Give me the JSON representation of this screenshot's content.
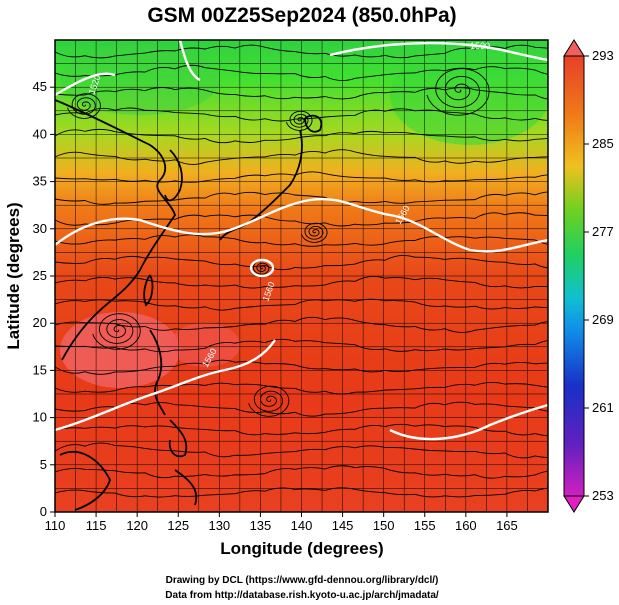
{
  "title": "GSM 00Z25Sep2024 (850.0hPa)",
  "x_axis": {
    "label": "Longitude (degrees)",
    "range": [
      110,
      170
    ],
    "ticks": [
      110,
      115,
      120,
      125,
      130,
      135,
      140,
      145,
      150,
      155,
      160,
      165
    ]
  },
  "y_axis": {
    "label": "Latitude (degrees)",
    "range": [
      0,
      50
    ],
    "ticks": [
      0,
      5,
      10,
      15,
      20,
      25,
      30,
      35,
      40,
      45
    ]
  },
  "colorbar": {
    "range": [
      253,
      293
    ],
    "labels": [
      293,
      285,
      277,
      269,
      261,
      253
    ],
    "colors": [
      "#d020c0",
      "#1018b0",
      "#1060e8",
      "#10b0e8",
      "#20d060",
      "#30c030",
      "#a0d020",
      "#f0c020",
      "#f08020",
      "#e84018",
      "#f05050"
    ]
  },
  "contour_labels": [
    "1560",
    "1560",
    "1560",
    "1500",
    "1520"
  ],
  "credits": {
    "line1": "Drawing by DCL (https://www.gfd-dennou.org/library/dcl/)",
    "line2": "Data from http://database.rish.kyoto-u.ac.jp/arch/jmadata/"
  }
}
